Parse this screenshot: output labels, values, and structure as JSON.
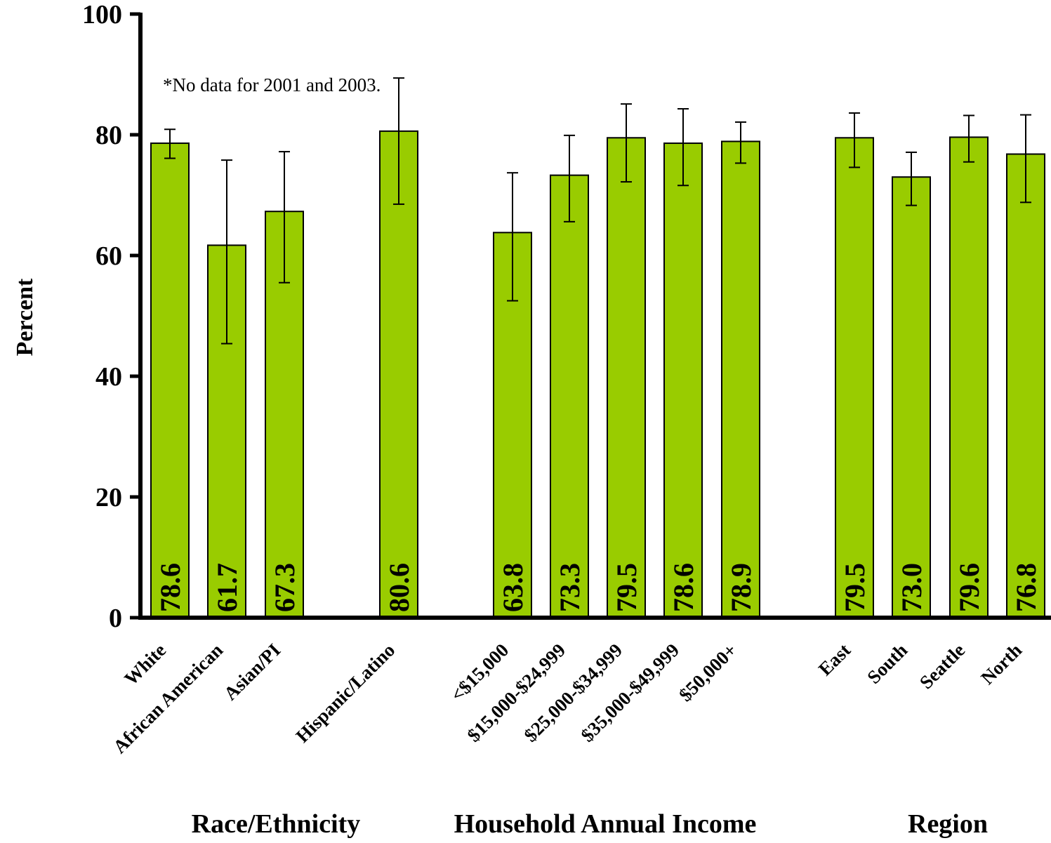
{
  "chart_data": {
    "type": "bar",
    "ylabel": "Percent",
    "ylim": [
      0,
      100
    ],
    "yticks": [
      0,
      20,
      40,
      60,
      80,
      100
    ],
    "note": "*No data for 2001 and 2003.",
    "bar_color": "#99cc00",
    "groups": [
      {
        "label": "Race/Ethnicity",
        "categories": [
          "White",
          "African American",
          "Asian/PI"
        ]
      },
      {
        "label": "",
        "categories": [
          "Hispanic/Latino"
        ]
      },
      {
        "label": "Household Annual Income",
        "categories": [
          "<$15,000",
          "$15,000-$24,999",
          "$25,000-$34,999",
          "$35,000-$49,999",
          "$50,000+"
        ]
      },
      {
        "label": "Region",
        "categories": [
          "East",
          "South",
          "Seattle",
          "North"
        ]
      }
    ],
    "categories": [
      "White",
      "African American",
      "Asian/PI",
      "Hispanic/Latino",
      "<$15,000",
      "$15,000-$24,999",
      "$25,000-$34,999",
      "$35,000-$49,999",
      "$50,000+",
      "East",
      "South",
      "Seattle",
      "North"
    ],
    "values": [
      78.6,
      61.7,
      67.3,
      80.6,
      63.8,
      73.3,
      79.5,
      78.6,
      78.9,
      79.5,
      73.0,
      79.6,
      76.8
    ],
    "value_labels": [
      "78.6",
      "61.7",
      "67.3",
      "80.6",
      "63.8",
      "73.3",
      "79.5",
      "78.6",
      "78.9",
      "79.5",
      "73.0",
      "79.6",
      "76.8"
    ],
    "error_low": [
      76.1,
      45.4,
      55.5,
      68.5,
      52.5,
      65.6,
      72.2,
      71.6,
      75.3,
      74.6,
      68.3,
      75.5,
      68.8
    ],
    "error_high": [
      80.9,
      75.8,
      77.2,
      89.4,
      73.7,
      79.9,
      85.1,
      84.3,
      82.1,
      83.6,
      77.1,
      83.2,
      83.3
    ]
  }
}
